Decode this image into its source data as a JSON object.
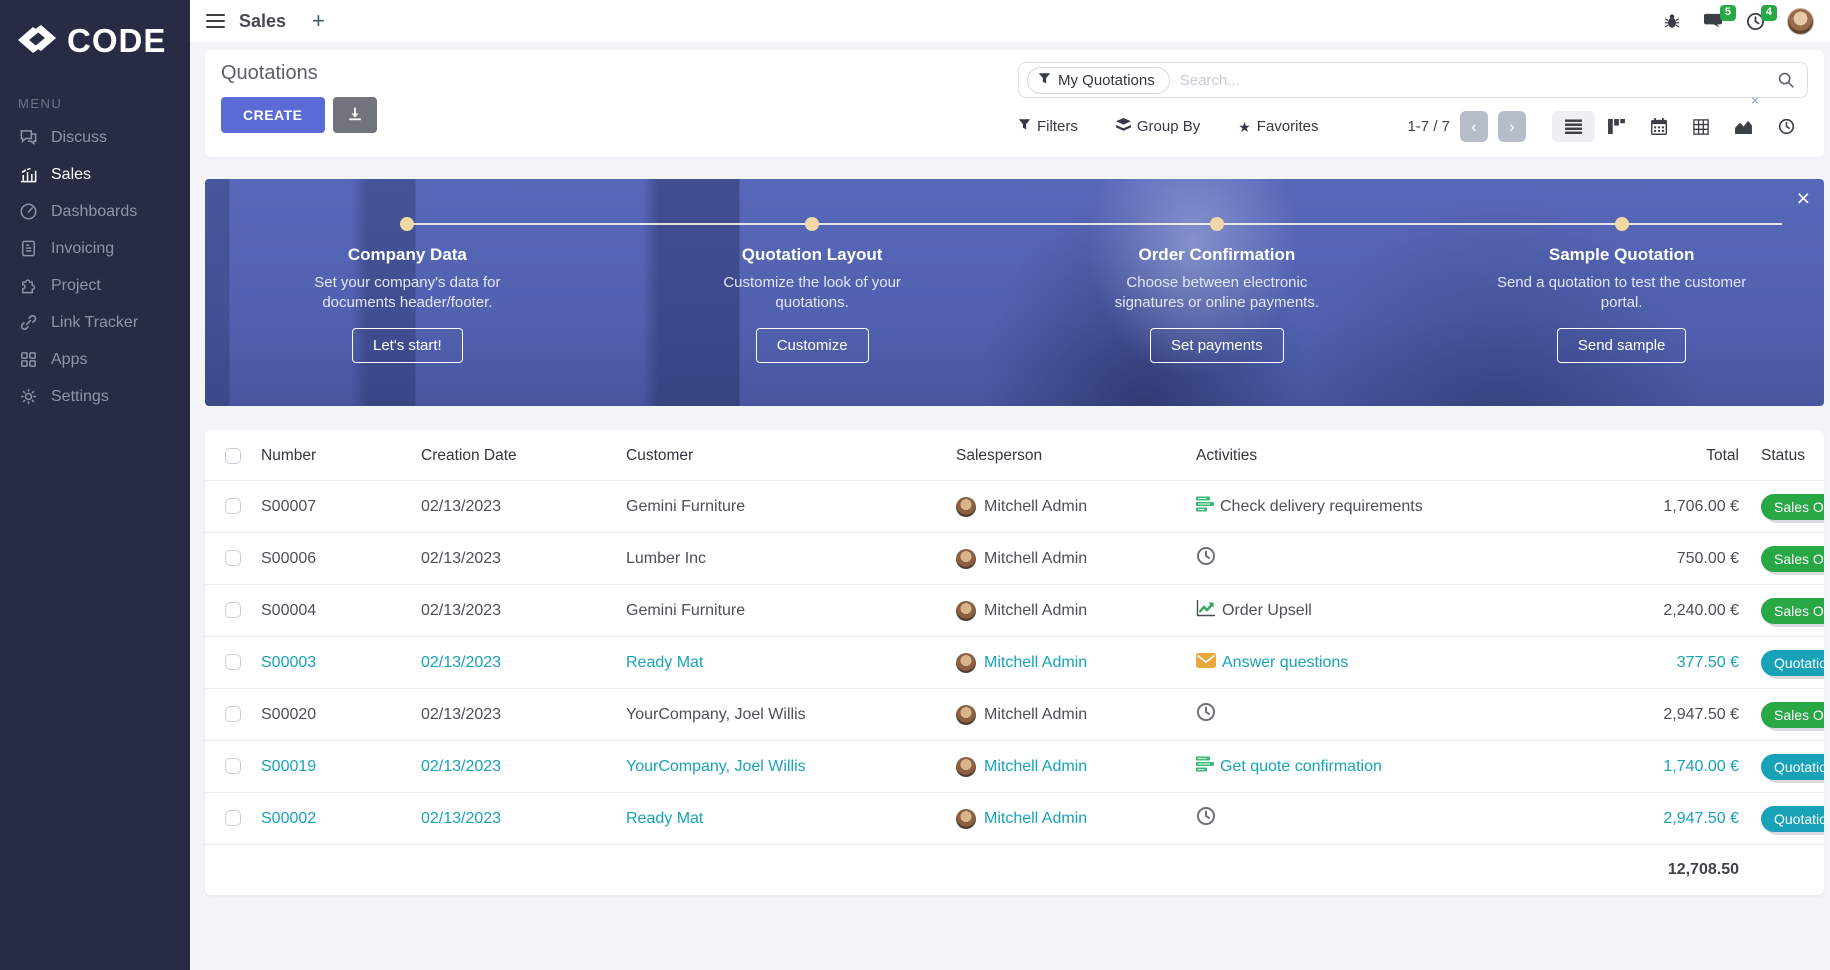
{
  "colors": {
    "accent": "#5b6bd5",
    "sidebar_bg": "#272c44",
    "status_sales_order": "#28a745",
    "status_quotation": "#17a2b8",
    "badge_count": "#28a745",
    "banner_base": "#5565b4",
    "teal_text": "#17a2b8"
  },
  "sidebar": {
    "logo": "CODE",
    "menu_label": "MENU",
    "items": [
      {
        "label": "Discuss",
        "icon": "discuss",
        "active": false
      },
      {
        "label": "Sales",
        "icon": "sales",
        "active": true
      },
      {
        "label": "Dashboards",
        "icon": "dashboards",
        "active": false
      },
      {
        "label": "Invoicing",
        "icon": "invoicing",
        "active": false
      },
      {
        "label": "Project",
        "icon": "project",
        "active": false
      },
      {
        "label": "Link Tracker",
        "icon": "link",
        "active": false
      },
      {
        "label": "Apps",
        "icon": "apps",
        "active": false
      },
      {
        "label": "Settings",
        "icon": "settings",
        "active": false
      }
    ]
  },
  "topbar": {
    "title": "Sales",
    "messages_count": "5",
    "activities_count": "4"
  },
  "icons": {
    "plus": "+",
    "close": "×",
    "prev": "‹",
    "next": "›",
    "star": "★",
    "facet_remove": "×"
  },
  "control_panel": {
    "title": "Quotations",
    "create_label": "CREATE",
    "search": {
      "facet": "My Quotations",
      "placeholder": "Search..."
    },
    "filters_label": "Filters",
    "group_by_label": "Group By",
    "favorites_label": "Favorites",
    "pagination": "1-7 / 7",
    "views": [
      "list",
      "kanban",
      "calendar",
      "pivot",
      "graph",
      "activity"
    ],
    "active_view": "list"
  },
  "banner": {
    "steps": [
      {
        "title": "Company Data",
        "description": "Set your company's data for documents header/footer.",
        "button": "Let's start!"
      },
      {
        "title": "Quotation Layout",
        "description": "Customize the look of your quotations.",
        "button": "Customize"
      },
      {
        "title": "Order Confirmation",
        "description": "Choose between electronic signatures or online payments.",
        "button": "Set payments"
      },
      {
        "title": "Sample Quotation",
        "description": "Send a quotation to test the customer portal.",
        "button": "Send sample"
      }
    ]
  },
  "table": {
    "columns": [
      "Number",
      "Creation Date",
      "Customer",
      "Salesperson",
      "Activities",
      "Total",
      "Status"
    ],
    "rows": [
      {
        "number": "S00007",
        "creation_date": "02/13/2023",
        "customer": "Gemini Furniture",
        "salesperson": "Mitchell Admin",
        "activity_icon": "tasks",
        "activity_label": "Check delivery requirements",
        "total": "1,706.00 €",
        "status": "Sales Order",
        "status_type": "sales_order"
      },
      {
        "number": "S00006",
        "creation_date": "02/13/2023",
        "customer": "Lumber Inc",
        "salesperson": "Mitchell Admin",
        "activity_icon": "clock",
        "activity_label": "",
        "total": "750.00 €",
        "status": "Sales Order",
        "status_type": "sales_order"
      },
      {
        "number": "S00004",
        "creation_date": "02/13/2023",
        "customer": "Gemini Furniture",
        "salesperson": "Mitchell Admin",
        "activity_icon": "chart",
        "activity_label": "Order Upsell",
        "total": "2,240.00 €",
        "status": "Sales Order",
        "status_type": "sales_order"
      },
      {
        "number": "S00003",
        "creation_date": "02/13/2023",
        "customer": "Ready Mat",
        "salesperson": "Mitchell Admin",
        "activity_icon": "envelope",
        "activity_label": "Answer questions",
        "total": "377.50 €",
        "status": "Quotation",
        "status_type": "quotation"
      },
      {
        "number": "S00020",
        "creation_date": "02/13/2023",
        "customer": "YourCompany, Joel Willis",
        "salesperson": "Mitchell Admin",
        "activity_icon": "clock",
        "activity_label": "",
        "total": "2,947.50 €",
        "status": "Sales Order",
        "status_type": "sales_order"
      },
      {
        "number": "S00019",
        "creation_date": "02/13/2023",
        "customer": "YourCompany, Joel Willis",
        "salesperson": "Mitchell Admin",
        "activity_icon": "tasks",
        "activity_label": "Get quote confirmation",
        "total": "1,740.00 €",
        "status": "Quotation",
        "status_type": "quotation"
      },
      {
        "number": "S00002",
        "creation_date": "02/13/2023",
        "customer": "Ready Mat",
        "salesperson": "Mitchell Admin",
        "activity_icon": "clock",
        "activity_label": "",
        "total": "2,947.50 €",
        "status": "Quotation",
        "status_type": "quotation"
      }
    ],
    "sum_total": "12,708.50"
  }
}
